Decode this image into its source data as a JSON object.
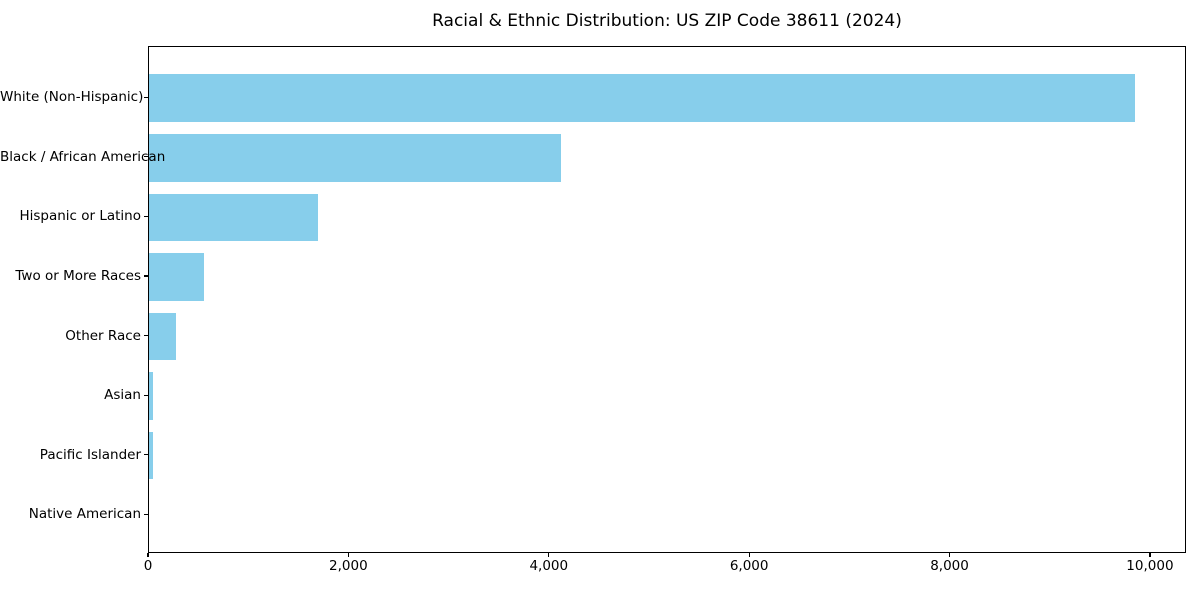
{
  "page": {
    "background_color": "#ffffff",
    "text_color": "#000000"
  },
  "chart_data": {
    "type": "bar",
    "orientation": "horizontal",
    "title": "Racial & Ethnic Distribution: US ZIP Code 38611 (2024)",
    "categories": [
      "White (Non-Hispanic)",
      "Black / African American",
      "Hispanic or Latino",
      "Two or More Races",
      "Other Race",
      "Asian",
      "Pacific Islander",
      "Native American"
    ],
    "values": [
      9860,
      4120,
      1690,
      548,
      265,
      45,
      45,
      0
    ],
    "xlabel": "",
    "ylabel": "",
    "xlim": [
      0,
      10360
    ],
    "x_ticks": [
      0,
      2000,
      4000,
      6000,
      8000,
      10000
    ],
    "x_tick_labels": [
      "0",
      "2,000",
      "4,000",
      "6,000",
      "8,000",
      "10,000"
    ],
    "bar_color": "#87CEEB",
    "axis_color": "#000000",
    "grid": false,
    "legend": null
  }
}
